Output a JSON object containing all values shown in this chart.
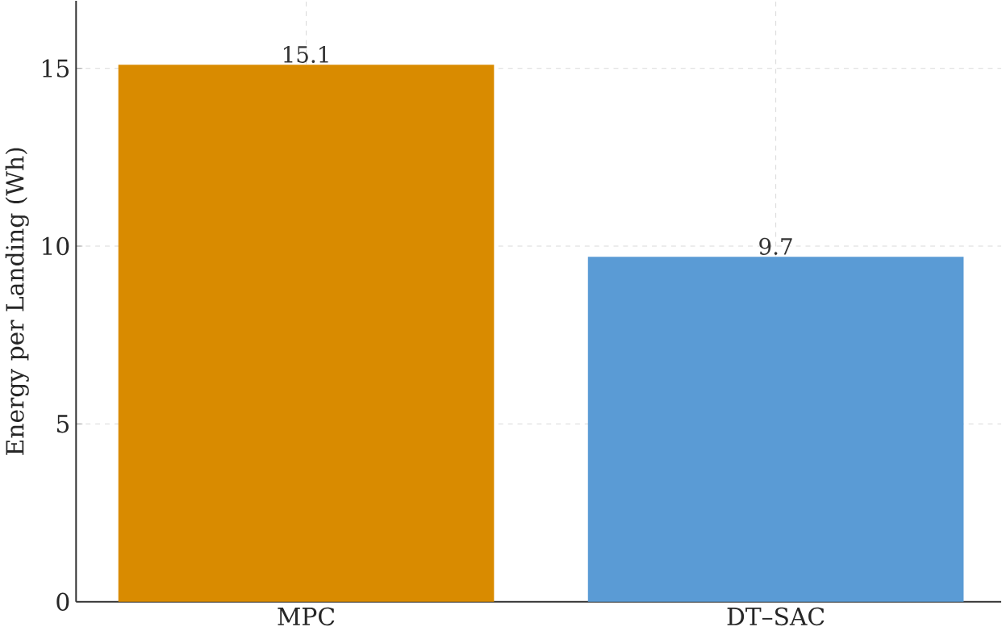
{
  "chart_data": {
    "type": "bar",
    "ylabel": "Energy per Landing (Wh)",
    "categories": [
      "MPC",
      "DT–SAC"
    ],
    "values": [
      15.1,
      9.7
    ],
    "colors": [
      "#d98b00",
      "#5a9bd5"
    ],
    "ylim": [
      0,
      16.9
    ],
    "yticks": [
      0,
      5,
      10,
      15
    ],
    "grid": true,
    "data_labels": true
  }
}
